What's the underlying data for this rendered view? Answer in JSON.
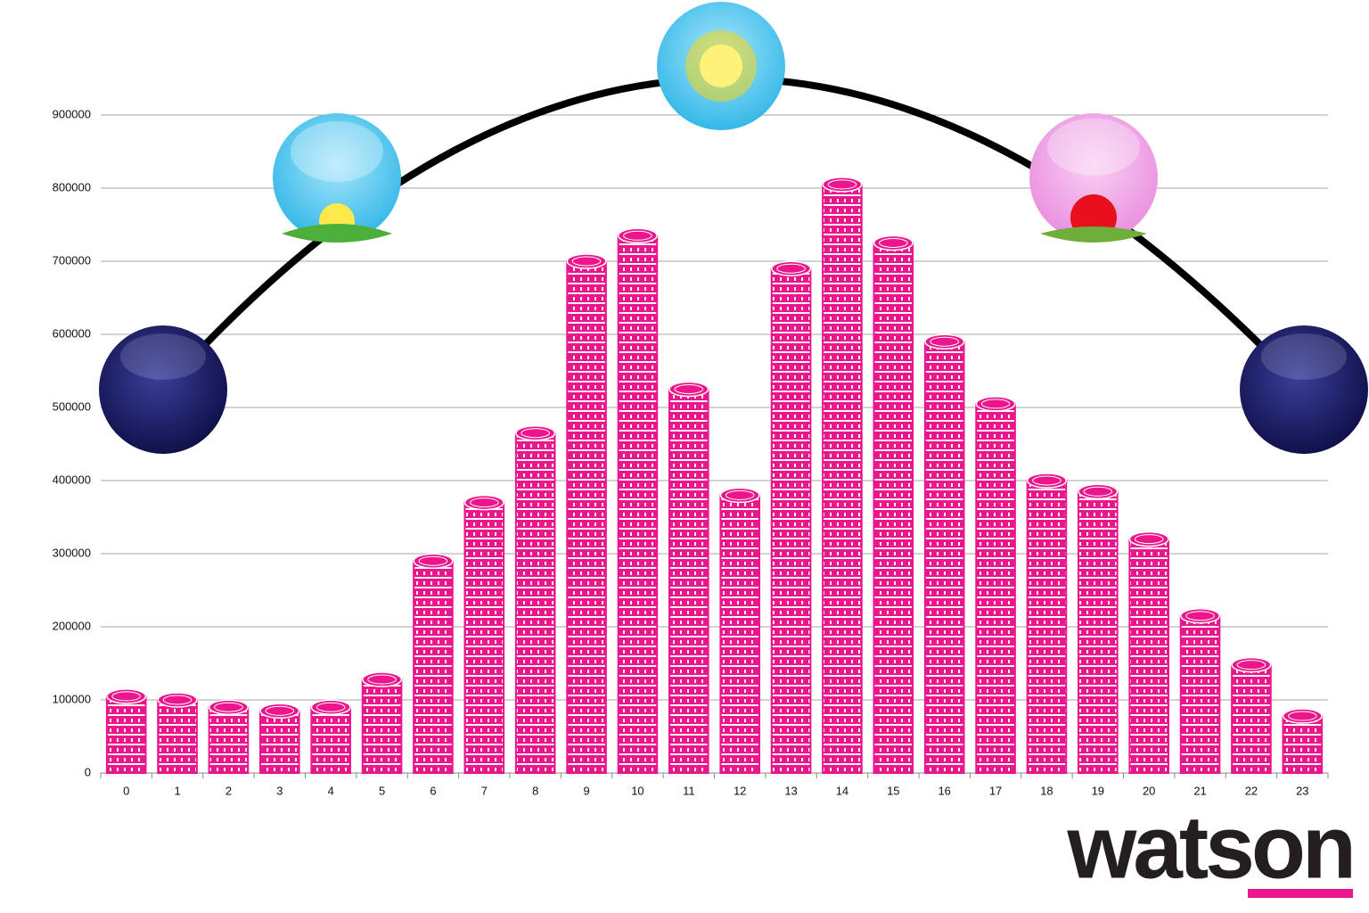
{
  "chart_data": {
    "type": "bar",
    "categories": [
      "0",
      "1",
      "2",
      "3",
      "4",
      "5",
      "6",
      "7",
      "8",
      "9",
      "10",
      "11",
      "12",
      "13",
      "14",
      "15",
      "16",
      "17",
      "18",
      "19",
      "20",
      "21",
      "22",
      "23"
    ],
    "values": [
      105000,
      100000,
      90000,
      85000,
      90000,
      128000,
      290000,
      370000,
      465000,
      700000,
      735000,
      525000,
      380000,
      690000,
      805000,
      725000,
      590000,
      505000,
      400000,
      385000,
      320000,
      215000,
      148000,
      78000
    ],
    "color": "#ec168c",
    "ylim": [
      0,
      900000
    ],
    "yticks": [
      0,
      100000,
      200000,
      300000,
      400000,
      500000,
      600000,
      700000,
      800000,
      900000
    ],
    "grid": true,
    "brand": "watson"
  }
}
